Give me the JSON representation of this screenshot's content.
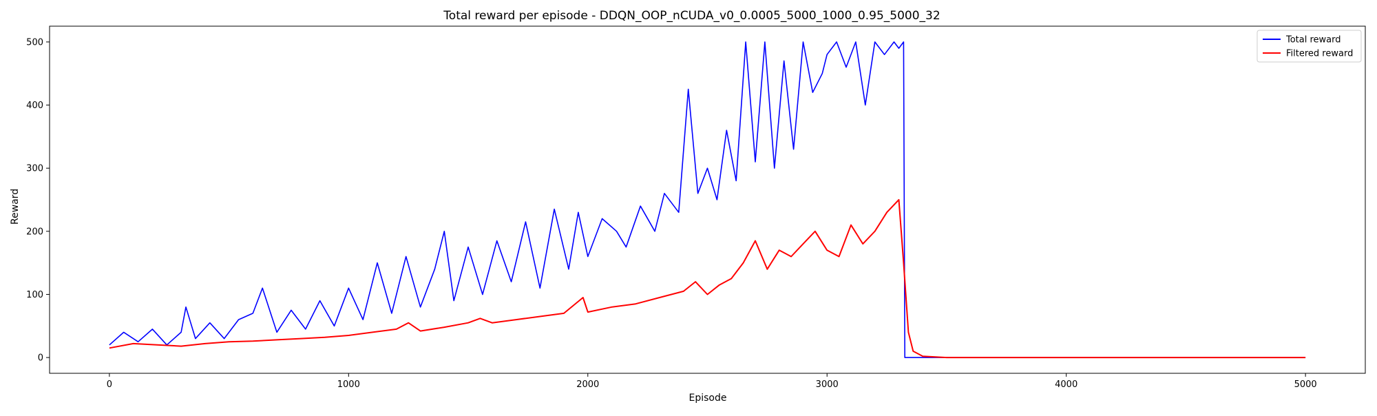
{
  "chart_data": {
    "type": "line",
    "title": "Total reward per episode - DDQN_OOP_nCUDA_v0_0.0005_5000_1000_0.95_5000_32",
    "xlabel": "Episode",
    "ylabel": "Reward",
    "xlim": [
      -250,
      5250
    ],
    "ylim": [
      -25,
      525
    ],
    "xticks": [
      0,
      1000,
      2000,
      3000,
      4000,
      5000
    ],
    "yticks": [
      0,
      100,
      200,
      300,
      400,
      500
    ],
    "grid": false,
    "legend_position": "top-right",
    "series": [
      {
        "name": "Total reward",
        "color": "#0000ff",
        "x": [
          0,
          60,
          120,
          180,
          240,
          300,
          320,
          360,
          420,
          480,
          540,
          600,
          640,
          700,
          760,
          820,
          880,
          940,
          1000,
          1060,
          1120,
          1180,
          1240,
          1300,
          1360,
          1400,
          1440,
          1500,
          1560,
          1620,
          1680,
          1740,
          1800,
          1860,
          1920,
          1960,
          2000,
          2060,
          2120,
          2160,
          2220,
          2280,
          2320,
          2380,
          2420,
          2460,
          2500,
          2540,
          2580,
          2620,
          2660,
          2700,
          2740,
          2780,
          2820,
          2860,
          2900,
          2940,
          2980,
          3000,
          3040,
          3080,
          3120,
          3160,
          3200,
          3240,
          3280,
          3300,
          3320,
          3325,
          3340,
          3400,
          4000,
          5000
        ],
        "y": [
          20,
          40,
          25,
          45,
          20,
          40,
          80,
          30,
          55,
          30,
          60,
          70,
          110,
          40,
          75,
          45,
          90,
          50,
          110,
          60,
          150,
          70,
          160,
          80,
          140,
          200,
          90,
          175,
          100,
          185,
          120,
          215,
          110,
          235,
          140,
          230,
          160,
          220,
          200,
          175,
          240,
          200,
          260,
          230,
          425,
          260,
          300,
          250,
          360,
          280,
          500,
          310,
          500,
          300,
          470,
          330,
          500,
          420,
          450,
          480,
          500,
          460,
          500,
          400,
          500,
          480,
          500,
          490,
          500,
          0,
          0,
          0,
          0,
          0
        ]
      },
      {
        "name": "Filtered reward",
        "color": "#ff0000",
        "x": [
          0,
          100,
          200,
          300,
          400,
          500,
          600,
          700,
          800,
          900,
          1000,
          1100,
          1200,
          1250,
          1300,
          1400,
          1500,
          1550,
          1600,
          1700,
          1800,
          1900,
          1980,
          2000,
          2100,
          2200,
          2300,
          2400,
          2450,
          2500,
          2550,
          2600,
          2650,
          2700,
          2750,
          2800,
          2850,
          2900,
          2950,
          3000,
          3050,
          3100,
          3150,
          3200,
          3250,
          3300,
          3320,
          3340,
          3360,
          3400,
          3500,
          4000,
          5000
        ],
        "y": [
          15,
          22,
          20,
          18,
          22,
          25,
          26,
          28,
          30,
          32,
          35,
          40,
          45,
          55,
          42,
          48,
          55,
          62,
          55,
          60,
          65,
          70,
          95,
          72,
          80,
          85,
          95,
          105,
          120,
          100,
          115,
          125,
          150,
          185,
          140,
          170,
          160,
          180,
          200,
          170,
          160,
          210,
          180,
          200,
          230,
          250,
          150,
          40,
          10,
          2,
          0,
          0,
          0
        ]
      }
    ]
  }
}
